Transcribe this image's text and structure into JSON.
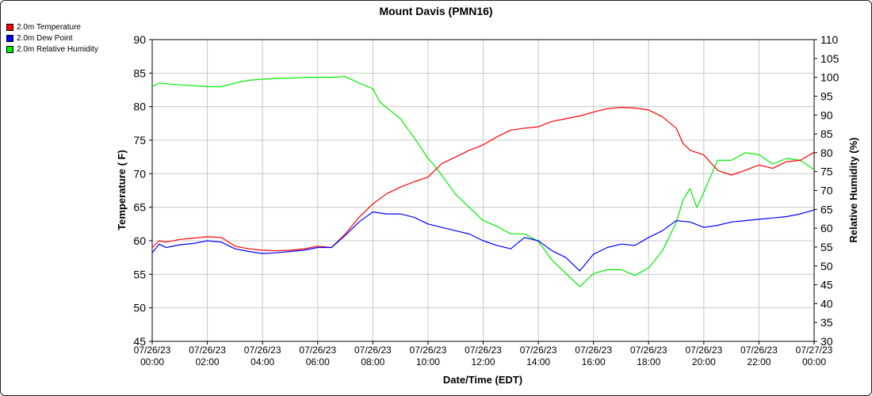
{
  "chart_data": {
    "type": "line",
    "title": "Mount Davis (PMN16)",
    "xlabel": "Date/Time (EDT)",
    "ylabel_left": "Temperature ( F)",
    "ylabel_right": "Relative Humidity (%)",
    "ylim_left": [
      45,
      90
    ],
    "ylim_right": [
      30,
      110
    ],
    "xlim_hours": [
      0,
      24
    ],
    "left_ticks": [
      "45",
      "50",
      "55",
      "60",
      "65",
      "70",
      "75",
      "80",
      "85",
      "90"
    ],
    "right_ticks": [
      "30",
      "35",
      "40",
      "45",
      "50",
      "55",
      "60",
      "65",
      "70",
      "75",
      "80",
      "85",
      "90",
      "95",
      "100",
      "105",
      "110"
    ],
    "x_ticks": [
      {
        "date": "07/26/23",
        "time": "00:00"
      },
      {
        "date": "07/26/23",
        "time": "02:00"
      },
      {
        "date": "07/26/23",
        "time": "04:00"
      },
      {
        "date": "07/26/23",
        "time": "06:00"
      },
      {
        "date": "07/26/23",
        "time": "08:00"
      },
      {
        "date": "07/26/23",
        "time": "10:00"
      },
      {
        "date": "07/26/23",
        "time": "12:00"
      },
      {
        "date": "07/26/23",
        "time": "14:00"
      },
      {
        "date": "07/26/23",
        "time": "16:00"
      },
      {
        "date": "07/26/23",
        "time": "18:00"
      },
      {
        "date": "07/26/23",
        "time": "20:00"
      },
      {
        "date": "07/26/23",
        "time": "22:00"
      },
      {
        "date": "07/27/23",
        "time": "00:00"
      }
    ],
    "grid": true,
    "legend_position": "top-left",
    "series": [
      {
        "name": "2.0m Temperature",
        "color": "#ff0000",
        "axis": "left",
        "x": [
          0,
          0.25,
          0.5,
          1,
          1.5,
          2,
          2.5,
          3,
          3.5,
          4,
          4.5,
          5,
          5.5,
          6,
          6.5,
          7,
          7.5,
          8,
          8.5,
          9,
          9.5,
          10,
          10.5,
          11,
          11.5,
          12,
          12.5,
          13,
          13.5,
          14,
          14.5,
          15,
          15.5,
          16,
          16.5,
          17,
          17.5,
          18,
          18.5,
          19,
          19.25,
          19.5,
          20,
          20.5,
          21,
          21.5,
          22,
          22.5,
          23,
          23.5,
          24
        ],
        "y": [
          59,
          60,
          59.8,
          60.2,
          60.4,
          60.6,
          60.5,
          59.2,
          58.8,
          58.6,
          58.5,
          58.6,
          58.8,
          59.2,
          59.0,
          61.0,
          63.5,
          65.5,
          67.0,
          68.0,
          68.8,
          69.5,
          71.5,
          72.5,
          73.5,
          74.3,
          75.5,
          76.5,
          76.8,
          77.0,
          77.8,
          78.2,
          78.6,
          79.2,
          79.7,
          79.9,
          79.8,
          79.5,
          78.5,
          76.8,
          74.5,
          73.5,
          72.8,
          70.5,
          69.8,
          70.5,
          71.3,
          70.8,
          71.8,
          72.0,
          73.2
        ]
      },
      {
        "name": "2.0m Dew Point",
        "color": "#0000ff",
        "axis": "left",
        "x": [
          0,
          0.25,
          0.5,
          1,
          1.5,
          2,
          2.5,
          3,
          3.5,
          4,
          4.5,
          5,
          5.5,
          6,
          6.5,
          7,
          7.5,
          8,
          8.5,
          9,
          9.5,
          10,
          10.5,
          11,
          11.5,
          12,
          12.5,
          13,
          13.5,
          14,
          14.5,
          15,
          15.5,
          16,
          16.5,
          17,
          17.5,
          18,
          18.5,
          19,
          19.5,
          20,
          20.5,
          21,
          21.5,
          22,
          22.5,
          23,
          23.5,
          24
        ],
        "y": [
          58.2,
          59.5,
          59.0,
          59.4,
          59.6,
          60.0,
          59.8,
          58.8,
          58.4,
          58.1,
          58.2,
          58.4,
          58.6,
          59.0,
          59.0,
          60.8,
          62.8,
          64.3,
          64.0,
          64.0,
          63.5,
          62.5,
          62.0,
          61.5,
          61.0,
          60.0,
          59.3,
          58.8,
          60.5,
          60.0,
          58.5,
          57.5,
          55.5,
          58.0,
          59.0,
          59.5,
          59.3,
          60.5,
          61.5,
          63.0,
          62.8,
          62.0,
          62.3,
          62.8,
          63.0,
          63.2,
          63.4,
          63.6,
          64.0,
          64.6
        ]
      },
      {
        "name": "2.0m Relative Humidity",
        "color": "#00ee00",
        "axis": "right",
        "x": [
          0,
          0.25,
          0.5,
          1,
          1.5,
          2,
          2.5,
          3,
          3.5,
          4,
          4.5,
          5,
          5.5,
          6,
          6.5,
          7,
          7.5,
          8,
          8.25,
          8.5,
          9,
          9.5,
          10,
          10.25,
          10.5,
          11,
          11.5,
          12,
          12.5,
          13,
          13.5,
          14,
          14.5,
          15,
          15.5,
          16,
          16.5,
          17,
          17.5,
          18,
          18.5,
          19,
          19.25,
          19.5,
          19.75,
          20,
          20.5,
          21,
          21.5,
          22,
          22.5,
          23,
          23.5,
          24
        ],
        "y": [
          97.5,
          98.5,
          98.3,
          98.0,
          97.8,
          97.5,
          97.5,
          98.5,
          99.2,
          99.5,
          99.7,
          99.8,
          100.0,
          100.0,
          100.0,
          100.2,
          98.5,
          97.0,
          93.5,
          92.0,
          89.0,
          84.0,
          78.5,
          76.5,
          74.0,
          69.0,
          65.5,
          62.0,
          60.5,
          58.5,
          58.5,
          56.5,
          51.5,
          48.0,
          44.5,
          48.0,
          49.0,
          49.0,
          47.5,
          49.5,
          54.0,
          61.5,
          67.5,
          70.5,
          65.5,
          69.5,
          78.0,
          78.0,
          80.0,
          79.5,
          77.0,
          78.5,
          78.0,
          75.5
        ]
      }
    ]
  }
}
